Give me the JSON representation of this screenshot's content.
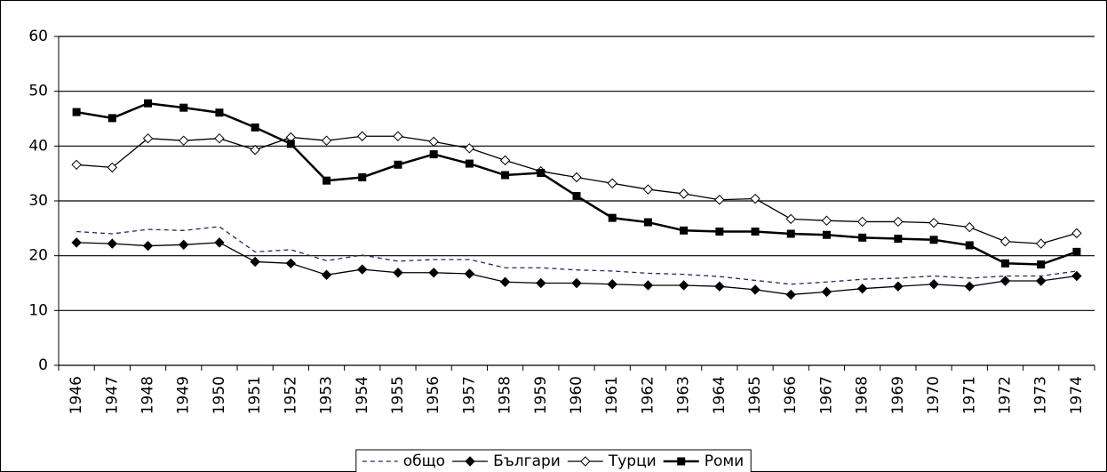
{
  "chart_data": {
    "type": "line",
    "categories": [
      "1946",
      "1947",
      "1948",
      "1949",
      "1950",
      "1951",
      "1952",
      "1953",
      "1954",
      "1955",
      "1956",
      "1957",
      "1958",
      "1959",
      "1960",
      "1961",
      "1962",
      "1963",
      "1964",
      "1965",
      "1966",
      "1967",
      "1968",
      "1969",
      "1970",
      "1971",
      "1972",
      "1973",
      "1974"
    ],
    "series": [
      {
        "name": "общо",
        "color": "#1f2d5c",
        "dash": true,
        "marker": null,
        "values": [
          24.4,
          24.0,
          24.8,
          24.6,
          25.3,
          20.7,
          21.1,
          19.1,
          20.1,
          19.0,
          19.3,
          19.3,
          17.8,
          17.8,
          17.4,
          17.2,
          16.8,
          16.6,
          16.2,
          15.5,
          14.8,
          15.2,
          15.7,
          15.9,
          16.3,
          15.9,
          16.3,
          16.3,
          17.2
        ]
      },
      {
        "name": "Българи",
        "color": "#000000",
        "dash": false,
        "marker": "diamond",
        "values": [
          22.4,
          22.2,
          21.8,
          22.0,
          22.4,
          18.9,
          18.6,
          16.5,
          17.5,
          16.9,
          16.9,
          16.7,
          15.2,
          15.0,
          15.0,
          14.8,
          14.6,
          14.6,
          14.4,
          13.8,
          12.9,
          13.4,
          14.0,
          14.4,
          14.8,
          14.4,
          15.4,
          15.4,
          16.3
        ]
      },
      {
        "name": "Турци",
        "color": "#000000",
        "dash": false,
        "marker": "open-diamond",
        "values": [
          36.6,
          36.1,
          41.4,
          41.0,
          41.4,
          39.3,
          41.6,
          41.0,
          41.8,
          41.8,
          40.8,
          39.6,
          37.4,
          35.4,
          34.3,
          33.2,
          32.1,
          31.3,
          30.2,
          30.4,
          26.7,
          26.4,
          26.2,
          26.2,
          26.0,
          25.2,
          22.6,
          22.2,
          24.1
        ]
      },
      {
        "name": "Роми",
        "color": "#000000",
        "dash": false,
        "marker": "square",
        "bold": true,
        "values": [
          46.2,
          45.1,
          47.8,
          47.0,
          46.1,
          43.4,
          40.4,
          33.7,
          34.3,
          36.6,
          38.5,
          36.8,
          34.7,
          35.1,
          30.9,
          26.9,
          26.1,
          24.6,
          24.4,
          24.4,
          24.0,
          23.8,
          23.3,
          23.1,
          22.9,
          21.9,
          18.6,
          18.4,
          20.7
        ]
      }
    ],
    "ylim": [
      0,
      60
    ],
    "yticks": [
      0,
      10,
      20,
      30,
      40,
      50,
      60
    ],
    "grid": true,
    "legend": "bottom"
  }
}
